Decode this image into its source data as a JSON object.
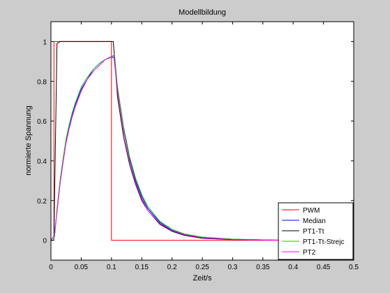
{
  "chart_data": {
    "type": "line",
    "title": "Modellbildung",
    "xlabel": "Zeit/s",
    "ylabel": "normierte Spannung",
    "xlim": [
      0,
      0.5
    ],
    "ylim": [
      -0.1,
      1.1
    ],
    "xticks": [
      0,
      0.05,
      0.1,
      0.15,
      0.2,
      0.25,
      0.3,
      0.35,
      0.4,
      0.45,
      0.5
    ],
    "xtick_labels": [
      "0",
      "0.05",
      "0.1",
      "0.15",
      "0.2",
      "0.25",
      "0.3",
      "0.35",
      "0.4",
      "0.45",
      "0.5"
    ],
    "yticks": [
      0,
      0.2,
      0.4,
      0.6,
      0.8,
      1
    ],
    "ytick_labels": [
      "0",
      "0.2",
      "0.4",
      "0.6",
      "0.8",
      "1"
    ],
    "grid": false,
    "legend_position": "bottom-right",
    "series": [
      {
        "name": "PWM",
        "color": "#ff0000",
        "x": [
          0,
          0.005,
          0.005,
          0.1,
          0.1,
          0.5
        ],
        "y": [
          0,
          0,
          1,
          1,
          0,
          0
        ]
      },
      {
        "name": "Median",
        "color": "#0000ff",
        "x": [
          0,
          0.004,
          0.006,
          0.01,
          0.015,
          0.02,
          0.025,
          0.03,
          0.035,
          0.04,
          0.05,
          0.06,
          0.07,
          0.08,
          0.09,
          0.1,
          0.104,
          0.11,
          0.12,
          0.13,
          0.14,
          0.15,
          0.16,
          0.18,
          0.2,
          0.22,
          0.25,
          0.3,
          0.35,
          0.4,
          0.45,
          0.5
        ],
        "y": [
          0,
          0,
          0.02,
          0.15,
          0.29,
          0.4,
          0.5,
          0.57,
          0.63,
          0.68,
          0.76,
          0.81,
          0.86,
          0.89,
          0.91,
          0.92,
          0.92,
          0.76,
          0.56,
          0.41,
          0.3,
          0.22,
          0.16,
          0.09,
          0.05,
          0.03,
          0.015,
          0.005,
          0.002,
          0,
          0,
          0
        ]
      },
      {
        "name": "PT1-Tt",
        "color": "#000000",
        "x": [
          0,
          0.005,
          0.01,
          0.015,
          0.02,
          0.025,
          0.03,
          0.035,
          0.04,
          0.05,
          0.06,
          0.07,
          0.08,
          0.09,
          0.1,
          0.103,
          0.11,
          0.12,
          0.13,
          0.14,
          0.15,
          0.16,
          0.18,
          0.2,
          0.22,
          0.25,
          0.3,
          0.35,
          0.4,
          0.45,
          0.5
        ],
        "y": [
          0,
          0.02,
          0.99,
          1,
          1,
          1,
          1,
          1,
          1,
          1,
          1,
          1,
          1,
          1,
          1,
          1,
          0.72,
          0.52,
          0.38,
          0.28,
          0.2,
          0.15,
          0.08,
          0.045,
          0.025,
          0.01,
          0.003,
          0.001,
          0,
          0,
          0
        ]
      },
      {
        "name": "PT1-Tt-Strejc",
        "color": "#00cc00",
        "x": [
          0,
          0.004,
          0.006,
          0.01,
          0.015,
          0.02,
          0.025,
          0.03,
          0.035,
          0.04,
          0.05,
          0.06,
          0.07,
          0.08,
          0.09,
          0.1,
          0.105,
          0.11,
          0.12,
          0.13,
          0.14,
          0.15,
          0.16,
          0.18,
          0.2,
          0.22,
          0.25,
          0.3,
          0.35,
          0.4,
          0.45,
          0.5
        ],
        "y": [
          0,
          0,
          0.02,
          0.16,
          0.3,
          0.41,
          0.51,
          0.58,
          0.64,
          0.69,
          0.77,
          0.82,
          0.86,
          0.89,
          0.91,
          0.92,
          0.935,
          0.77,
          0.57,
          0.42,
          0.31,
          0.23,
          0.17,
          0.095,
          0.055,
          0.032,
          0.016,
          0.006,
          0.002,
          0,
          0,
          0
        ]
      },
      {
        "name": "PT2",
        "color": "#ff00ff",
        "x": [
          0,
          0.005,
          0.01,
          0.015,
          0.02,
          0.025,
          0.03,
          0.035,
          0.04,
          0.05,
          0.06,
          0.07,
          0.08,
          0.09,
          0.1,
          0.104,
          0.11,
          0.12,
          0.13,
          0.14,
          0.15,
          0.16,
          0.18,
          0.2,
          0.22,
          0.25,
          0.3,
          0.35,
          0.4,
          0.45,
          0.5
        ],
        "y": [
          0,
          0.02,
          0.14,
          0.28,
          0.39,
          0.49,
          0.56,
          0.62,
          0.67,
          0.75,
          0.81,
          0.85,
          0.88,
          0.91,
          0.925,
          0.93,
          0.75,
          0.55,
          0.4,
          0.29,
          0.21,
          0.15,
          0.085,
          0.048,
          0.028,
          0.013,
          0.004,
          0.001,
          0,
          0,
          0
        ]
      }
    ]
  }
}
